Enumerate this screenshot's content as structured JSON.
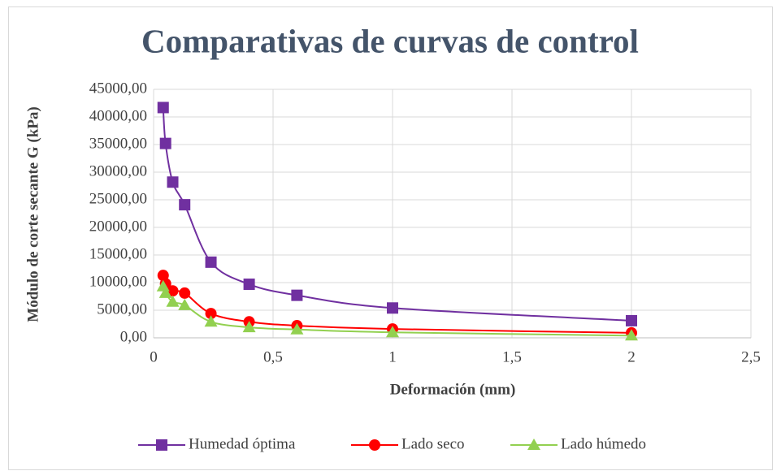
{
  "chart_data": {
    "type": "scatter",
    "title": "Comparativas de curvas de control",
    "x_label": "Deformación (mm)",
    "y_label": "Módulo  de corte secante G (kPa)",
    "x": [
      0.04,
      0.05,
      0.08,
      0.13,
      0.24,
      0.4,
      0.6,
      1,
      2
    ],
    "series": [
      {
        "name": "Humedad óptima",
        "color": "#7030a0",
        "marker": "square",
        "values": [
          41700,
          35200,
          28200,
          24100,
          13700,
          9700,
          7700,
          5400,
          3100
        ]
      },
      {
        "name": "Lado seco",
        "color": "#ff0000",
        "marker": "circle",
        "values": [
          11300,
          9800,
          8500,
          8100,
          4400,
          2900,
          2200,
          1600,
          900
        ]
      },
      {
        "name": "Lado húmedo",
        "color": "#92d050",
        "marker": "triangle",
        "values": [
          9300,
          8100,
          6500,
          5900,
          2900,
          1900,
          1500,
          1000,
          400
        ]
      }
    ],
    "xlim": [
      0,
      2.5
    ],
    "xticks": [
      0,
      {
        "value": 0.5,
        "label": "0,5"
      },
      1,
      {
        "value": 1.5,
        "label": "1,5"
      },
      2,
      {
        "value": 2.5,
        "label": "2,5"
      }
    ],
    "ylim": [
      0,
      45000
    ],
    "yticks": [
      {
        "value": 0,
        "label": "0,00"
      },
      {
        "value": 5000,
        "label": "5000,00"
      },
      {
        "value": 10000,
        "label": "10000,00"
      },
      {
        "value": 15000,
        "label": "15000,00"
      },
      {
        "value": 20000,
        "label": "20000,00"
      },
      {
        "value": 25000,
        "label": "25000,00"
      },
      {
        "value": 30000,
        "label": "30000,00"
      },
      {
        "value": 35000,
        "label": "35000,00"
      },
      {
        "value": 40000,
        "label": "40000,00"
      },
      {
        "value": 45000,
        "label": "45000,00"
      }
    ],
    "grid": true,
    "smooth": true,
    "legend": "bottom"
  }
}
